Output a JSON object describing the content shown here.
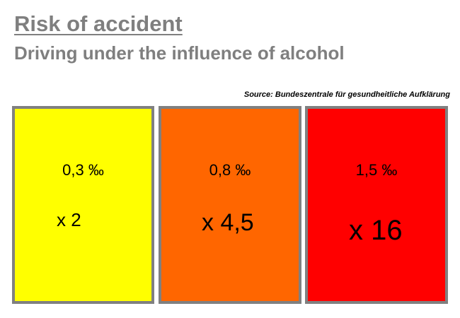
{
  "title": "Risk of accident",
  "subtitle": "Driving under the influence of alcohol",
  "source": "Source: Bundeszentrale für gesundheitliche Aufklärung",
  "boxes": [
    {
      "level": "0,3 ‰",
      "factor": "x 2",
      "color": "#ffff00"
    },
    {
      "level": "0,8 ‰",
      "factor": "x 4,5",
      "color": "#ff6600"
    },
    {
      "level": "1,5 ‰",
      "factor": "x 16",
      "color": "#ff0000"
    }
  ],
  "border_color": "#808080",
  "heading_color": "#7f7f7f"
}
